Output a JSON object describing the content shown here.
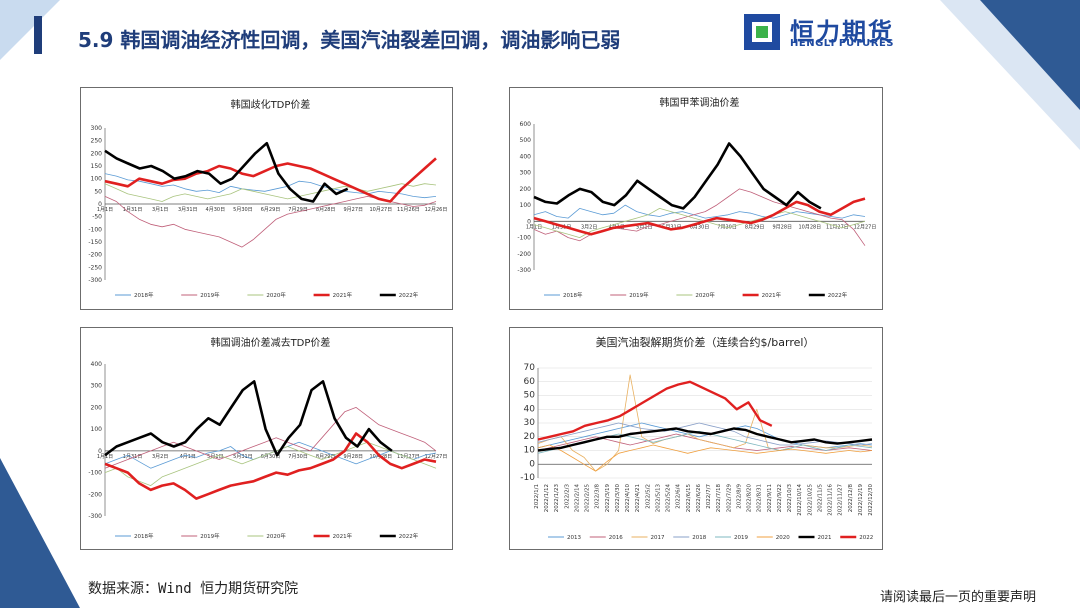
{
  "header": {
    "title": "5.9 韩国调油经济性回调，美国汽油裂差回调，调油影响已弱",
    "logo_main": "恒力期货",
    "logo_sub": "HENGLI FUTURES"
  },
  "footer": {
    "source": "数据来源：Wind  恒力期货研究院",
    "disclaimer": "请阅读最后一页的重要声明"
  },
  "colors": {
    "accent": "#1f3d7a",
    "s2018": "#5b9bd5",
    "s2019": "#c0607a",
    "s2020": "#a9c47f",
    "s2021": "#e02020",
    "s2022": "#000000"
  },
  "chart_data": [
    {
      "type": "line",
      "title": "韩国歧化TDP价差",
      "ylim": [
        -300,
        300
      ],
      "yticks": [
        300,
        250,
        200,
        150,
        100,
        50,
        0,
        -50,
        -100,
        -150,
        -200,
        -250,
        -300
      ],
      "xticks": [
        "1月1日",
        "1月31日",
        "3月1日",
        "3月31日",
        "4月30日",
        "5月30日",
        "6月29日",
        "7月29日",
        "8月28日",
        "9月27日",
        "10月27日",
        "11月26日",
        "12月26日"
      ],
      "legend": [
        "2018年",
        "2019年",
        "2020年",
        "2021年",
        "2022年"
      ],
      "series": [
        {
          "name": "2018年",
          "values": [
            120,
            110,
            95,
            90,
            80,
            70,
            75,
            60,
            50,
            55,
            45,
            70,
            60,
            55,
            50,
            60,
            70,
            90,
            85,
            70,
            60,
            50,
            45,
            40,
            50,
            45,
            40,
            30,
            25,
            30
          ]
        },
        {
          "name": "2019年",
          "values": [
            30,
            10,
            -30,
            -60,
            -80,
            -90,
            -80,
            -100,
            -110,
            -120,
            -130,
            -150,
            -170,
            -140,
            -100,
            -60,
            -40,
            -30,
            -20,
            -10,
            0,
            10,
            20,
            30,
            20,
            10,
            0,
            -10,
            -5,
            10
          ]
        },
        {
          "name": "2020年",
          "values": [
            80,
            60,
            40,
            30,
            20,
            10,
            30,
            40,
            30,
            20,
            30,
            40,
            60,
            50,
            40,
            30,
            20,
            30,
            40,
            50,
            60,
            70,
            60,
            50,
            60,
            70,
            80,
            70,
            80,
            75
          ]
        },
        {
          "name": "2021年",
          "values": [
            90,
            80,
            70,
            100,
            90,
            80,
            95,
            100,
            120,
            130,
            150,
            140,
            120,
            110,
            130,
            150,
            160,
            150,
            140,
            120,
            100,
            80,
            60,
            40,
            20,
            10,
            60,
            100,
            140,
            180
          ]
        },
        {
          "name": "2022年",
          "values": [
            210,
            180,
            160,
            140,
            150,
            130,
            100,
            110,
            130,
            120,
            80,
            100,
            150,
            200,
            240,
            120,
            60,
            20,
            10,
            80,
            40,
            60
          ]
        }
      ]
    },
    {
      "type": "line",
      "title": "韩国甲苯调油价差",
      "ylim": [
        -300,
        600
      ],
      "yticks": [
        600,
        500,
        400,
        300,
        200,
        100,
        0,
        -100,
        -200,
        -300
      ],
      "xticks": [
        "1月1日",
        "1月31日",
        "3月2日",
        "4月1日",
        "5月1日",
        "5月31日",
        "6月30日",
        "7月30日",
        "8月29日",
        "9月28日",
        "10月28日",
        "11月27日",
        "12月27日"
      ],
      "legend": [
        "2018年",
        "2019年",
        "2020年",
        "2021年",
        "2022年"
      ],
      "series": [
        {
          "name": "2018年",
          "values": [
            40,
            60,
            30,
            20,
            80,
            60,
            40,
            50,
            100,
            60,
            40,
            30,
            50,
            60,
            40,
            20,
            30,
            40,
            60,
            50,
            30,
            20,
            40,
            60,
            50,
            40,
            30,
            20,
            40,
            30
          ]
        },
        {
          "name": "2019年",
          "values": [
            -50,
            -80,
            -60,
            -100,
            -120,
            -80,
            -60,
            -40,
            -50,
            -60,
            -30,
            -20,
            0,
            20,
            40,
            60,
            100,
            150,
            200,
            180,
            150,
            120,
            100,
            80,
            60,
            40,
            20,
            10,
            -50,
            -150
          ]
        },
        {
          "name": "2020年",
          "values": [
            -20,
            -40,
            -60,
            -80,
            -100,
            -60,
            -40,
            -20,
            0,
            20,
            40,
            80,
            60,
            40,
            20,
            0,
            -20,
            -40,
            -20,
            0,
            20,
            40,
            60,
            40,
            20,
            0,
            -20,
            -40,
            -20,
            0
          ]
        },
        {
          "name": "2021年",
          "values": [
            20,
            0,
            -20,
            -40,
            -60,
            -80,
            -60,
            -40,
            -30,
            -20,
            -10,
            -30,
            -50,
            -40,
            -20,
            0,
            20,
            10,
            0,
            -10,
            10,
            40,
            80,
            120,
            100,
            60,
            40,
            80,
            120,
            140
          ]
        },
        {
          "name": "2022年",
          "values": [
            150,
            120,
            110,
            160,
            200,
            180,
            120,
            100,
            160,
            250,
            200,
            150,
            100,
            80,
            150,
            250,
            350,
            480,
            400,
            300,
            200,
            150,
            100,
            180,
            120,
            80
          ]
        }
      ]
    },
    {
      "type": "line",
      "title": "韩国调油价差减去TDP价差",
      "ylim": [
        -300,
        400
      ],
      "yticks": [
        400,
        300,
        200,
        100,
        0,
        -100,
        -200,
        -300
      ],
      "xticks": [
        "1月1日",
        "1月31日",
        "3月2日",
        "4月1日",
        "5月1日",
        "5月31日",
        "6月30日",
        "7月30日",
        "8月29日",
        "9月28日",
        "10月28日",
        "11月27日",
        "12月27日"
      ],
      "legend": [
        "2018年",
        "2019年",
        "2020年",
        "2021年",
        "2022年"
      ],
      "series": [
        {
          "name": "2018年",
          "values": [
            -60,
            -40,
            -20,
            -50,
            -80,
            -60,
            -40,
            -20,
            -30,
            -10,
            0,
            20,
            -20,
            -40,
            -20,
            0,
            20,
            40,
            20,
            0,
            -20,
            -40,
            -60,
            -40,
            -20,
            0,
            -20,
            -40,
            -20,
            -10
          ]
        },
        {
          "name": "2019年",
          "values": [
            -80,
            -60,
            -40,
            -20,
            0,
            20,
            40,
            20,
            0,
            -20,
            -40,
            -20,
            0,
            20,
            40,
            60,
            40,
            20,
            0,
            60,
            120,
            180,
            200,
            160,
            120,
            100,
            80,
            60,
            40,
            0
          ]
        },
        {
          "name": "2020年",
          "values": [
            -100,
            -80,
            -120,
            -140,
            -160,
            -120,
            -100,
            -80,
            -60,
            -40,
            -20,
            -40,
            -60,
            -40,
            -20,
            0,
            20,
            0,
            -20,
            -40,
            -20,
            0,
            20,
            40,
            20,
            0,
            -20,
            -40,
            -60,
            -80
          ]
        },
        {
          "name": "2021年",
          "values": [
            -60,
            -80,
            -100,
            -150,
            -180,
            -160,
            -150,
            -180,
            -220,
            -200,
            -180,
            -160,
            -150,
            -140,
            -120,
            -100,
            -110,
            -90,
            -80,
            -60,
            -40,
            0,
            80,
            40,
            -20,
            -60,
            -80,
            -60,
            -40,
            -50
          ]
        },
        {
          "name": "2022年",
          "values": [
            -20,
            20,
            40,
            60,
            80,
            40,
            20,
            40,
            100,
            150,
            120,
            200,
            280,
            320,
            100,
            -20,
            60,
            120,
            280,
            320,
            150,
            60,
            20,
            100,
            40,
            0
          ]
        }
      ]
    },
    {
      "type": "line",
      "title": "美国汽油裂解期货价差（连续合约$/barrel）",
      "ylim": [
        -10,
        70
      ],
      "yticks": [
        70,
        60,
        50,
        40,
        30,
        20,
        10,
        0,
        -10
      ],
      "xticks": [
        "2022/1/1",
        "2022/1/12",
        "2022/1/23",
        "2022/2/3",
        "2022/2/14",
        "2022/2/25",
        "2022/3/8",
        "2022/3/19",
        "2022/3/30",
        "2022/4/10",
        "2022/4/21",
        "2022/5/2",
        "2022/5/13",
        "2022/5/24",
        "2022/6/4",
        "2022/6/15",
        "2022/6/26",
        "2022/7/7",
        "2022/7/18",
        "2022/7/29",
        "2022/8/9",
        "2022/8/20",
        "2022/8/31",
        "2022/9/11",
        "2022/9/22",
        "2022/10/3",
        "2022/10/14",
        "2022/10/25",
        "2022/11/5",
        "2022/11/16",
        "2022/11/27",
        "2022/12/8",
        "2022/12/19",
        "2022/12/30"
      ],
      "legend": [
        "2013",
        "2016",
        "2017",
        "2018",
        "2019",
        "2020",
        "2021",
        "2022"
      ],
      "series": [
        {
          "name": "2013",
          "values": [
            12,
            14,
            16,
            18,
            20,
            22,
            24,
            26,
            28,
            30,
            28,
            26,
            24,
            22,
            20,
            22,
            24,
            26,
            28,
            26,
            22,
            18,
            16,
            14,
            13,
            12,
            13,
            14,
            15,
            14
          ]
        },
        {
          "name": "2016",
          "values": [
            10,
            12,
            14,
            16,
            18,
            20,
            18,
            16,
            14,
            16,
            18,
            20,
            22,
            20,
            18,
            16,
            14,
            12,
            11,
            10,
            11,
            12,
            13,
            12,
            11,
            10,
            11,
            12,
            11,
            10
          ]
        },
        {
          "name": "2017",
          "values": [
            15,
            18,
            20,
            10,
            5,
            -5,
            0,
            10,
            65,
            20,
            15,
            18,
            20,
            22,
            18,
            16,
            14,
            12,
            15,
            40,
            12,
            10,
            12,
            14,
            13,
            12,
            12,
            13,
            14,
            13
          ]
        },
        {
          "name": "2018",
          "values": [
            16,
            18,
            20,
            22,
            24,
            26,
            28,
            30,
            28,
            26,
            25,
            24,
            26,
            28,
            30,
            28,
            26,
            24,
            20,
            18,
            16,
            14,
            14,
            15,
            16,
            17,
            16,
            15,
            14,
            15
          ]
        },
        {
          "name": "2019",
          "values": [
            8,
            10,
            12,
            14,
            16,
            18,
            20,
            22,
            20,
            18,
            16,
            18,
            20,
            22,
            24,
            22,
            20,
            18,
            16,
            14,
            12,
            10,
            12,
            14,
            12,
            10,
            12,
            14,
            13,
            12
          ]
        },
        {
          "name": "2020",
          "values": [
            12,
            14,
            10,
            5,
            0,
            -5,
            2,
            8,
            10,
            12,
            14,
            12,
            10,
            8,
            10,
            12,
            11,
            10,
            9,
            8,
            9,
            10,
            11,
            10,
            9,
            8,
            9,
            10,
            9,
            10
          ]
        },
        {
          "name": "2021",
          "values": [
            10,
            11,
            12,
            14,
            16,
            18,
            20,
            20,
            22,
            23,
            24,
            25,
            26,
            24,
            23,
            22,
            24,
            26,
            25,
            22,
            20,
            18,
            16,
            17,
            18,
            16,
            15,
            16,
            17,
            18
          ]
        },
        {
          "name": "2022",
          "values": [
            18,
            20,
            22,
            24,
            28,
            30,
            32,
            35,
            40,
            45,
            50,
            55,
            58,
            60,
            56,
            52,
            48,
            40,
            45,
            32,
            28
          ]
        }
      ]
    }
  ]
}
